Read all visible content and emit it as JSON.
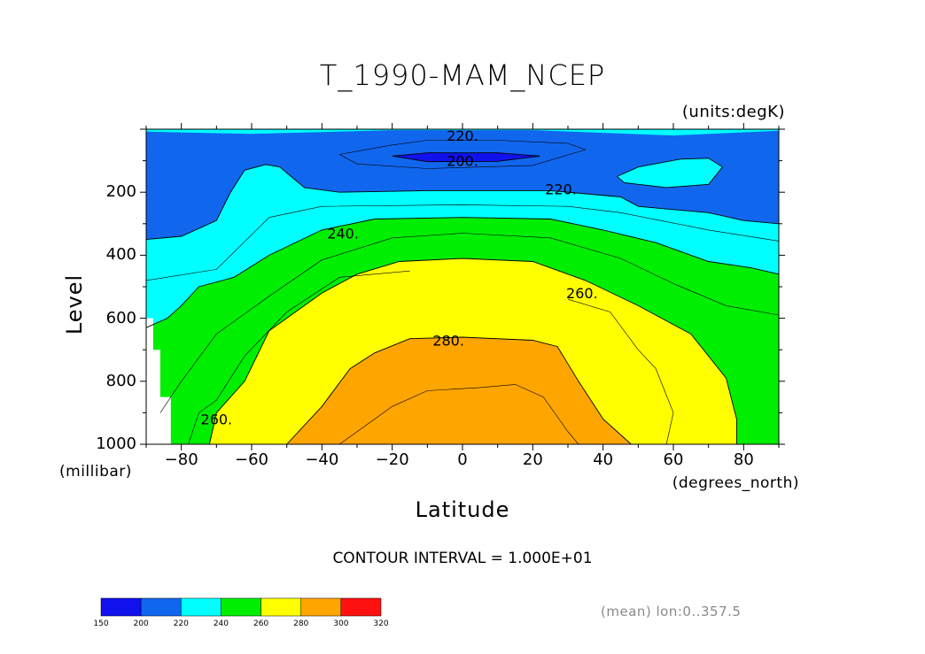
{
  "chart_data": {
    "type": "contour",
    "title": "T_1990-MAM_NCEP",
    "units_label": "(units:degK)",
    "xlabel": "Latitude",
    "ylabel": "Level",
    "x_units": "(degrees_north)",
    "y_units": "(millibar)",
    "xlim": [
      -90,
      90
    ],
    "ylim": [
      1000,
      0
    ],
    "x_ticks": [
      -80,
      -60,
      -40,
      -20,
      0,
      20,
      40,
      60,
      80
    ],
    "y_ticks": [
      1000,
      800,
      600,
      400,
      200
    ],
    "contour_interval_text": "CONTOUR INTERVAL = 1.000E+01",
    "note": "(mean) lon:0..357.5",
    "contour_labels": [
      {
        "text": "220.",
        "lat": 0,
        "level": 20
      },
      {
        "text": "200.",
        "lat": 0,
        "level": 100
      },
      {
        "text": "220.",
        "lat": 28,
        "level": 190
      },
      {
        "text": "240.",
        "lat": -34,
        "level": 330
      },
      {
        "text": "260.",
        "lat": 34,
        "level": 520
      },
      {
        "text": "280.",
        "lat": -4,
        "level": 670
      },
      {
        "text": "260.",
        "lat": -70,
        "level": 920
      }
    ],
    "colorbar": {
      "ticks": [
        "150",
        "200",
        "220",
        "240",
        "260",
        "280",
        "300",
        "320"
      ],
      "colors": [
        "#1111ee",
        "#1166ee",
        "#00ffff",
        "#00ee00",
        "#ffff00",
        "#ffa500",
        "#ff1111"
      ]
    }
  },
  "palette": {
    "lt200": "#1111ee",
    "b200_220": "#1166ee",
    "b220_240": "#00ffff",
    "b240_260": "#00ee00",
    "b260_280": "#ffff00",
    "b280_300": "#ffa500"
  }
}
